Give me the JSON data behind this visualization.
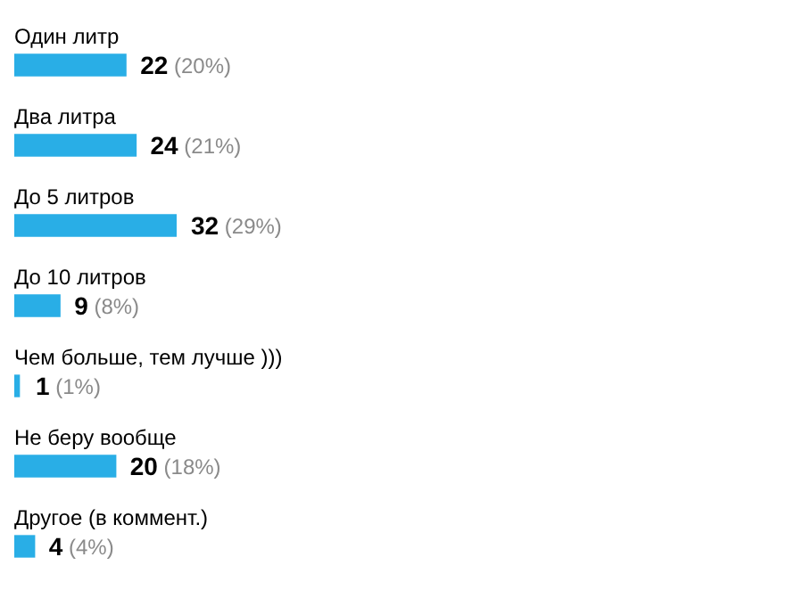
{
  "chart_data": {
    "type": "bar",
    "orientation": "horizontal",
    "categories": [
      "Один литр",
      "Два литра",
      "До 5 литров",
      "До 10 литров",
      "Чем больше, тем лучше )))",
      "Не беру вообще",
      "Другое (в коммент.)"
    ],
    "values": [
      22,
      24,
      32,
      9,
      1,
      20,
      4
    ],
    "value_labels": [
      "22 (20%)",
      "24 (21%)",
      "32 (29%)",
      "9 (8%)",
      "1 (1%)",
      "20 (18%)",
      "4 (4%)"
    ],
    "color": "#29aee6",
    "tick_labels": false
  }
}
